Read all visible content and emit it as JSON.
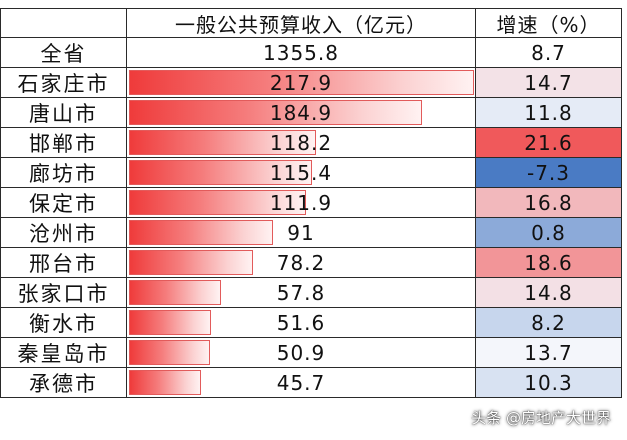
{
  "colors": {
    "bar_red": "#ef3b3b",
    "heat_max_red": "#f0595b",
    "heat_neutral": "#f4f6fb",
    "heat_min_blue": "#4a7bc4"
  },
  "chart_data": {
    "type": "table",
    "columns": [
      "",
      "一般公共预算收入（亿元）",
      "增速（%）"
    ],
    "total": {
      "name": "全省",
      "revenue": "1355.8",
      "growth": "8.7"
    },
    "rows": [
      {
        "name": "石家庄市",
        "revenue": "217.9",
        "growth": "14.7"
      },
      {
        "name": "唐山市",
        "revenue": "184.9",
        "growth": "11.8"
      },
      {
        "name": "邯郸市",
        "revenue": "118.2",
        "growth": "21.6"
      },
      {
        "name": "廊坊市",
        "revenue": "115.4",
        "growth": "-7.3"
      },
      {
        "name": "保定市",
        "revenue": "111.9",
        "growth": "16.8"
      },
      {
        "name": "沧州市",
        "revenue": "91",
        "growth": "0.8"
      },
      {
        "name": "邢台市",
        "revenue": "78.2",
        "growth": "18.6"
      },
      {
        "name": "张家口市",
        "revenue": "57.8",
        "growth": "14.8"
      },
      {
        "name": "衡水市",
        "revenue": "51.6",
        "growth": "8.2"
      },
      {
        "name": "秦皇岛市",
        "revenue": "50.9",
        "growth": "13.7"
      },
      {
        "name": "承德市",
        "revenue": "45.7",
        "growth": "10.3"
      }
    ]
  },
  "watermark": "头条 @房地产大世界"
}
